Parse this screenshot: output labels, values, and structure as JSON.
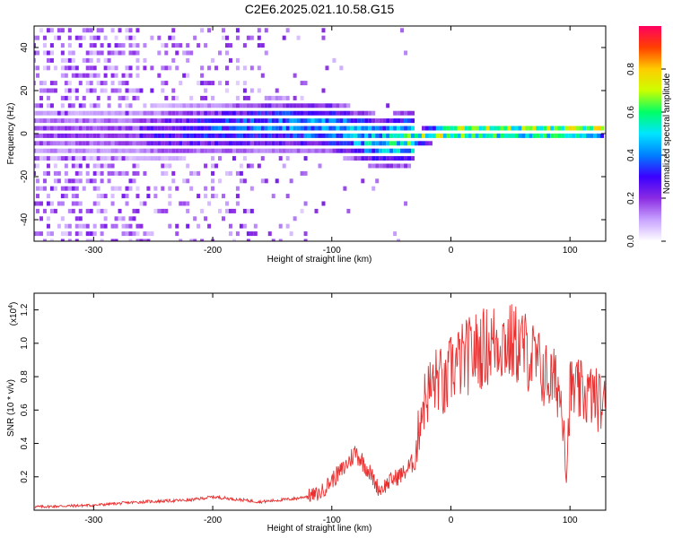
{
  "title": "C2E6.2025.021.10.58.G15",
  "chart_data": [
    {
      "type": "heatmap",
      "name": "spectrogram",
      "xlabel": "Height of straight line (km)",
      "ylabel": "Frequency (Hz)",
      "xlim": [
        -350,
        130
      ],
      "ylim": [
        -50,
        50
      ],
      "x_ticks": [
        -300,
        -200,
        -100,
        0,
        100
      ],
      "y_ticks": [
        -40,
        -20,
        0,
        20,
        40
      ],
      "colorbar": {
        "label": "Normalized spectral amplitude",
        "range": [
          0,
          1
        ],
        "ticks": [
          "0.0",
          "0.2",
          "0.4",
          "0.6",
          "0.8"
        ],
        "colormap": [
          "#ffffff",
          "#c8a2ff",
          "#8a2be2",
          "#3b00ff",
          "#0080ff",
          "#00e5ff",
          "#00ff66",
          "#ccff00",
          "#ffcc00",
          "#ff4000",
          "#ff0060"
        ]
      },
      "ridge": [
        {
          "x": -260,
          "f": 0,
          "amp": 0.25
        },
        {
          "x": -200,
          "f": 2,
          "amp": 0.35
        },
        {
          "x": -150,
          "f": 4,
          "amp": 0.4
        },
        {
          "x": -100,
          "f": 3,
          "amp": 0.45
        },
        {
          "x": -60,
          "f": -4,
          "amp": 0.5
        },
        {
          "x": -30,
          "f": -2,
          "amp": 0.6
        },
        {
          "x": 0,
          "f": 1,
          "amp": 0.8
        },
        {
          "x": 50,
          "f": 1,
          "amp": 0.75
        },
        {
          "x": 100,
          "f": 1,
          "amp": 0.8
        },
        {
          "x": 130,
          "f": 2,
          "amp": 0.7
        }
      ]
    },
    {
      "type": "line",
      "name": "snr",
      "xlabel": "Height of straight line (km)",
      "ylabel": "SNR (10 * v/v)",
      "multiplier": "(x10",
      "multiplier_exp": "4",
      "multiplier_close": ")",
      "xlim": [
        -350,
        130
      ],
      "ylim": [
        0,
        1.3
      ],
      "x_ticks": [
        -300,
        -200,
        -100,
        0,
        100
      ],
      "y_ticks": [
        "0.2",
        "0.4",
        "0.6",
        "0.8",
        "1.0",
        "1.2"
      ],
      "color": "#e83030",
      "x": [
        -350,
        -300,
        -260,
        -220,
        -200,
        -160,
        -130,
        -110,
        -100,
        -90,
        -80,
        -70,
        -60,
        -50,
        -40,
        -30,
        -25,
        -20,
        -15,
        -10,
        -5,
        0,
        10,
        20,
        30,
        40,
        50,
        60,
        70,
        80,
        90,
        95,
        97,
        100,
        110,
        120,
        130
      ],
      "y": [
        0.02,
        0.03,
        0.05,
        0.06,
        0.08,
        0.05,
        0.07,
        0.1,
        0.18,
        0.25,
        0.35,
        0.25,
        0.12,
        0.18,
        0.22,
        0.3,
        0.6,
        0.7,
        0.75,
        0.8,
        0.7,
        0.85,
        0.9,
        0.95,
        0.98,
        1.02,
        1.0,
        0.98,
        0.9,
        0.8,
        0.75,
        0.55,
        0.2,
        0.72,
        0.7,
        0.68,
        0.62
      ]
    }
  ]
}
